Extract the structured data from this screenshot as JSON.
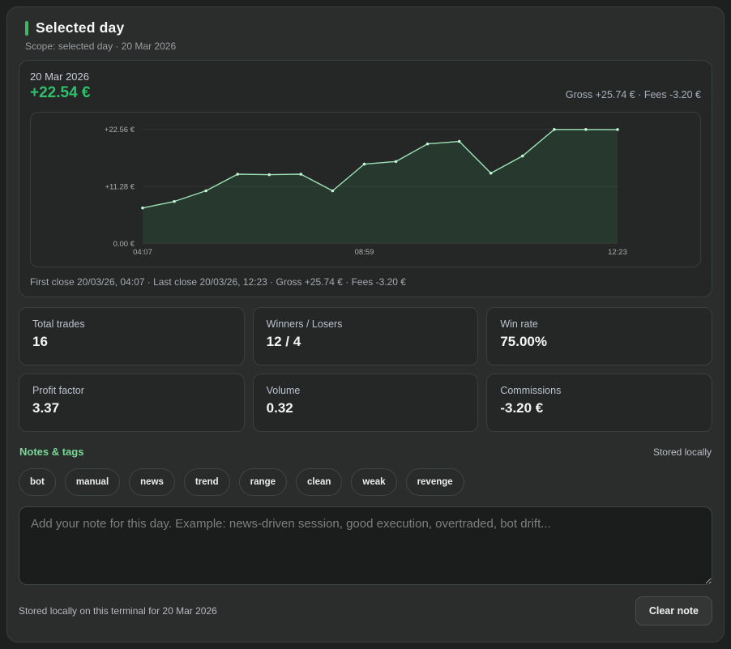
{
  "header": {
    "title": "Selected day",
    "scope": "Scope: selected day · 20 Mar 2026"
  },
  "chart_card": {
    "date": "20 Mar 2026",
    "pnl": "+22.54 €",
    "gross_fees": "Gross +25.74 € · Fees -3.20 €",
    "footer": "First close 20/03/26, 04:07 · Last close 20/03/26, 12:23 · Gross +25.74 € · Fees -3.20 €"
  },
  "chart_data": {
    "type": "area",
    "series_name": "Cumulative P&L (€)",
    "values": [
      7.0,
      8.3,
      10.4,
      13.7,
      13.6,
      13.7,
      10.4,
      15.7,
      16.2,
      19.7,
      20.2,
      13.9,
      17.3,
      22.56,
      22.56,
      22.54
    ],
    "ylim": [
      0,
      22.56
    ],
    "y_ticks": [
      {
        "value": 0,
        "label": "0.00 €"
      },
      {
        "value": 11.28,
        "label": "+11.28 €"
      },
      {
        "value": 22.56,
        "label": "+22.56 €"
      }
    ],
    "x_ticks": [
      {
        "index": 0,
        "label": "04:07"
      },
      {
        "index": 7,
        "label": "08:59"
      },
      {
        "index": 15,
        "label": "12:23"
      }
    ],
    "grid": true,
    "legend": false
  },
  "stats": [
    {
      "label": "Total trades",
      "value": "16"
    },
    {
      "label": "Winners / Losers",
      "value": "12 / 4"
    },
    {
      "label": "Win rate",
      "value": "75.00%"
    },
    {
      "label": "Profit factor",
      "value": "3.37"
    },
    {
      "label": "Volume",
      "value": "0.32"
    },
    {
      "label": "Commissions",
      "value": "-3.20 €"
    }
  ],
  "notes": {
    "title": "Notes & tags",
    "stored_badge": "Stored locally",
    "note_value": "",
    "placeholder": "Add your note for this day. Example: news-driven session, good execution, overtraded, bot drift...",
    "footer": "Stored locally on this terminal for 20 Mar 2026",
    "clear_label": "Clear note"
  },
  "tags": [
    "bot",
    "manual",
    "news",
    "trend",
    "range",
    "clean",
    "weak",
    "revenge"
  ],
  "colors": {
    "accent_green": "#3fb765",
    "pnl_green": "#2ec06a",
    "line": "#9ce3b6",
    "dot": "#c2f3d4",
    "fill": "#27392e",
    "grid": "rgba(255,255,255,0.07)",
    "axis_text": "#a9afab"
  }
}
